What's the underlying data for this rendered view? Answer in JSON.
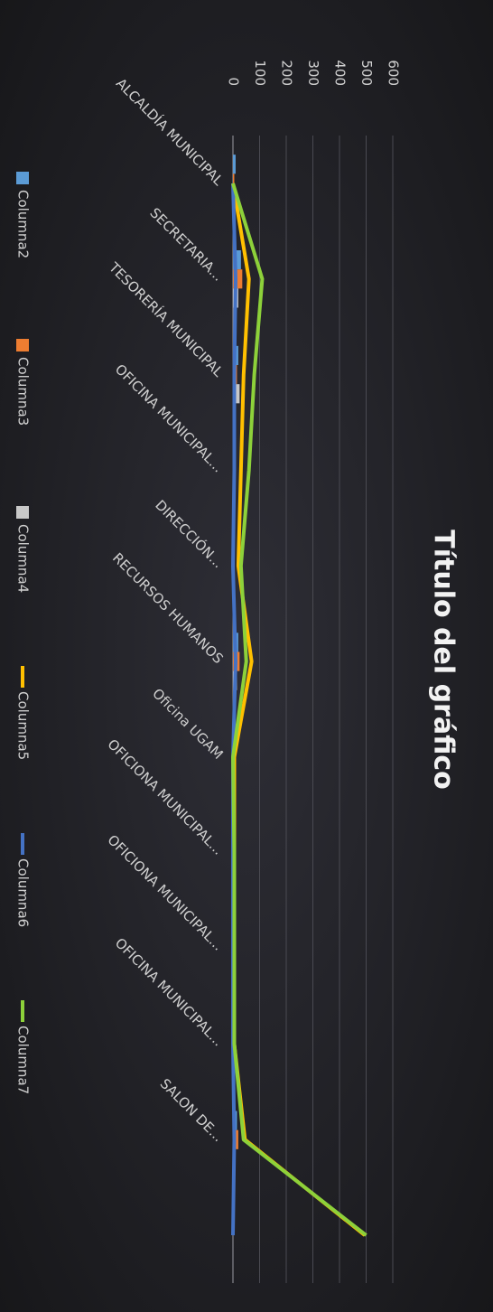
{
  "chart_data": {
    "type": "combo",
    "title": "Título del gráfico",
    "categories": [
      "ALCALDÍA MUNICIPAL",
      "SECRETARIA...",
      "TESORERÍA MUNICIPAL",
      "OFICINA MUNICIPAL...",
      "DIRECCIÓN...",
      "RECURSOS HUMANOS",
      "Oficina UGAM",
      "OFICIONA MUNICIPAL...",
      "OFICIONA MUNICIPAL...",
      "OFICINA MUNICIPAL...",
      "SALON DE...",
      null
    ],
    "series": [
      {
        "name": "Columna2",
        "type": "bar",
        "color": "#5b9bd5",
        "values": [
          10,
          30,
          20,
          10,
          5,
          20,
          0,
          0,
          0,
          0,
          15,
          5
        ]
      },
      {
        "name": "Columna3",
        "type": "bar",
        "color": "#ed7d31",
        "values": [
          5,
          35,
          15,
          10,
          5,
          25,
          0,
          0,
          0,
          0,
          20,
          0
        ]
      },
      {
        "name": "Columna4",
        "type": "bar",
        "color": "#c8c8c8",
        "values": [
          5,
          20,
          25,
          10,
          5,
          15,
          0,
          0,
          0,
          0,
          10,
          0
        ]
      },
      {
        "name": "Columna5",
        "type": "line",
        "color": "#ffc000",
        "values": [
          0,
          60,
          40,
          30,
          20,
          70,
          5,
          5,
          5,
          5,
          45,
          495
        ]
      },
      {
        "name": "Columna6",
        "type": "line",
        "color": "#4472c4",
        "values": [
          0,
          10,
          5,
          5,
          0,
          10,
          0,
          0,
          0,
          0,
          5,
          0
        ]
      },
      {
        "name": "Columna7",
        "type": "line",
        "color": "#8dd13a",
        "values": [
          0,
          110,
          80,
          60,
          30,
          50,
          0,
          5,
          5,
          5,
          40,
          500
        ]
      }
    ],
    "ylim": [
      0,
      600
    ],
    "yticks": [
      0,
      100,
      200,
      300,
      400,
      500,
      600
    ],
    "grid": true,
    "legend": "bottom"
  }
}
